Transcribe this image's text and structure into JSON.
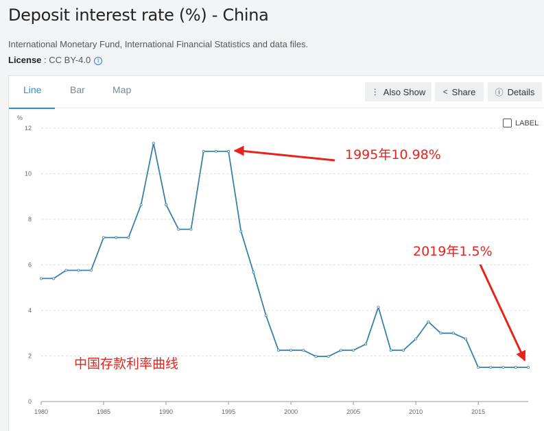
{
  "header": {
    "title": "Deposit interest rate (%) - China",
    "source": "International Monetary Fund, International Financial Statistics and data files.",
    "license_label": "License",
    "license_value": " : CC BY-4.0",
    "info_icon": "i"
  },
  "tabs": [
    {
      "label": "Line",
      "active": true
    },
    {
      "label": "Bar",
      "active": false
    },
    {
      "label": "Map",
      "active": false
    }
  ],
  "toolbar": {
    "also_show": {
      "label": "Also Show",
      "icon": "vertical-dots-icon",
      "glyph": "⋮"
    },
    "share": {
      "label": "Share",
      "icon": "share-icon",
      "glyph": "<"
    },
    "details": {
      "label": "Details",
      "icon": "info-icon",
      "glyph": "ⓘ"
    }
  },
  "label_toggle": {
    "label": "LABEL",
    "checked": false
  },
  "colors": {
    "series": "#3a7fa8",
    "annotation": "#e8221c",
    "grid": "#dddddd",
    "axis": "#999999"
  },
  "chart_data": {
    "type": "line",
    "ylabel": "%",
    "xlabel": "",
    "xlim": [
      1980,
      2019
    ],
    "ylim": [
      0,
      12
    ],
    "x_ticks": [
      1980,
      1985,
      1990,
      1995,
      2000,
      2005,
      2010,
      2015
    ],
    "y_ticks": [
      0,
      2,
      4,
      6,
      8,
      10,
      12
    ],
    "grid": true,
    "series": [
      {
        "x": [
          1980,
          1981,
          1982,
          1983,
          1984,
          1985,
          1986,
          1987,
          1988,
          1989,
          1990,
          1991,
          1992,
          1993,
          1994,
          1995,
          1996,
          1997,
          1998,
          1999,
          2000,
          2001,
          2002,
          2003,
          2004,
          2005,
          2006,
          2007,
          2008,
          2009,
          2010,
          2011,
          2012,
          2013,
          2014,
          2015,
          2016,
          2017,
          2018,
          2019
        ],
        "values": [
          5.4,
          5.4,
          5.76,
          5.76,
          5.76,
          7.2,
          7.2,
          7.2,
          8.64,
          11.34,
          8.64,
          7.56,
          7.56,
          10.98,
          10.98,
          10.98,
          7.47,
          5.67,
          3.78,
          2.25,
          2.25,
          2.25,
          1.98,
          1.98,
          2.25,
          2.25,
          2.52,
          4.14,
          2.25,
          2.25,
          2.75,
          3.5,
          3.0,
          3.0,
          2.75,
          1.5,
          1.5,
          1.5,
          1.5,
          1.5
        ]
      }
    ],
    "annotations": [
      {
        "text": "1995年10.98%",
        "x": 1995,
        "y": 10.98
      },
      {
        "text": "2019年1.5%",
        "x": 2019,
        "y": 1.5
      },
      {
        "text": "中国存款利率曲线"
      }
    ]
  }
}
